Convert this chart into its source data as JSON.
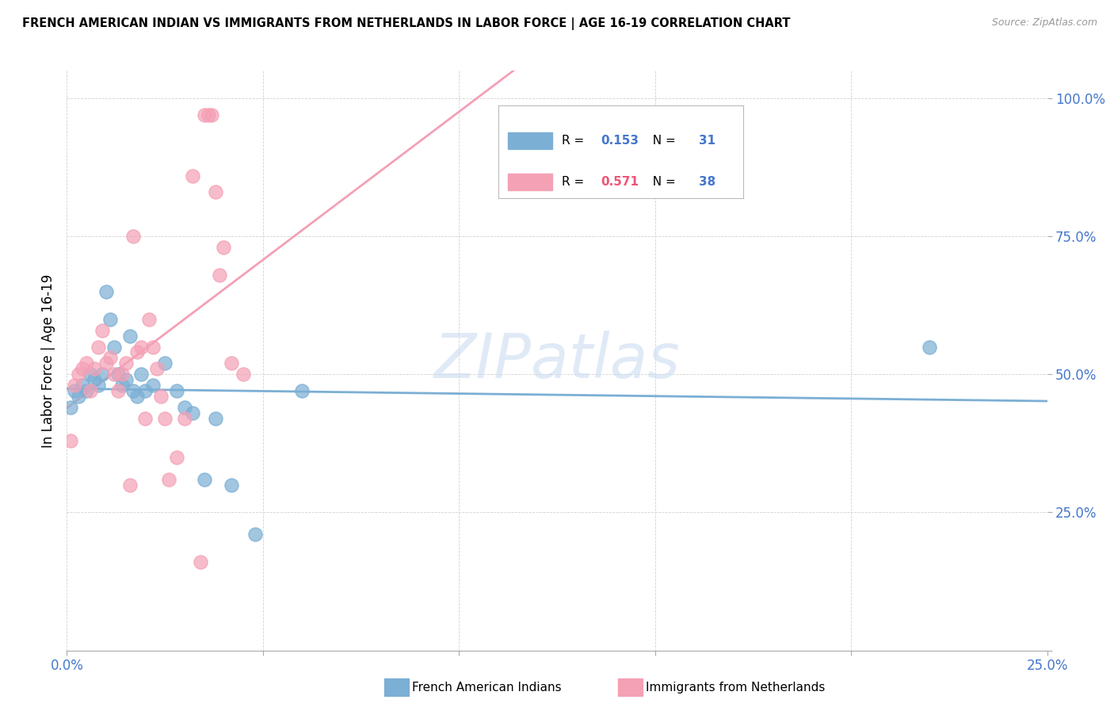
{
  "title": "FRENCH AMERICAN INDIAN VS IMMIGRANTS FROM NETHERLANDS IN LABOR FORCE | AGE 16-19 CORRELATION CHART",
  "source": "Source: ZipAtlas.com",
  "ylabel": "In Labor Force | Age 16-19",
  "legend_label1": "French American Indians",
  "legend_label2": "Immigrants from Netherlands",
  "R1": "0.153",
  "N1": "31",
  "R2": "0.571",
  "N2": "38",
  "watermark": "ZIPatlas",
  "color_blue": "#7bafd4",
  "color_pink": "#f4a0b5",
  "color_blue_text": "#4477cc",
  "color_pink_text": "#ee5577",
  "blue_scatter_x": [
    0.001,
    0.002,
    0.003,
    0.004,
    0.005,
    0.006,
    0.007,
    0.008,
    0.009,
    0.01,
    0.011,
    0.012,
    0.013,
    0.014,
    0.015,
    0.016,
    0.017,
    0.018,
    0.019,
    0.02,
    0.022,
    0.025,
    0.028,
    0.03,
    0.032,
    0.035,
    0.038,
    0.042,
    0.048,
    0.06,
    0.22
  ],
  "blue_scatter_y": [
    0.44,
    0.47,
    0.46,
    0.48,
    0.47,
    0.5,
    0.49,
    0.48,
    0.5,
    0.65,
    0.6,
    0.55,
    0.5,
    0.48,
    0.49,
    0.57,
    0.47,
    0.46,
    0.5,
    0.47,
    0.48,
    0.52,
    0.47,
    0.44,
    0.43,
    0.31,
    0.42,
    0.3,
    0.21,
    0.47,
    0.55
  ],
  "pink_scatter_x": [
    0.001,
    0.002,
    0.003,
    0.004,
    0.005,
    0.006,
    0.007,
    0.008,
    0.009,
    0.01,
    0.011,
    0.012,
    0.013,
    0.014,
    0.015,
    0.016,
    0.017,
    0.018,
    0.019,
    0.02,
    0.021,
    0.022,
    0.023,
    0.024,
    0.025,
    0.026,
    0.028,
    0.03,
    0.032,
    0.034,
    0.035,
    0.036,
    0.037,
    0.038,
    0.039,
    0.04,
    0.042,
    0.045
  ],
  "pink_scatter_y": [
    0.38,
    0.48,
    0.5,
    0.51,
    0.52,
    0.47,
    0.51,
    0.55,
    0.58,
    0.52,
    0.53,
    0.5,
    0.47,
    0.5,
    0.52,
    0.3,
    0.75,
    0.54,
    0.55,
    0.42,
    0.6,
    0.55,
    0.51,
    0.46,
    0.42,
    0.31,
    0.35,
    0.42,
    0.86,
    0.16,
    0.97,
    0.97,
    0.97,
    0.83,
    0.68,
    0.73,
    0.52,
    0.5
  ],
  "xmin": 0.0,
  "xmax": 0.25,
  "ymin": 0.0,
  "ymax": 1.05,
  "xticks": [
    0.0,
    0.05,
    0.1,
    0.15,
    0.2,
    0.25
  ],
  "yticks": [
    0.0,
    0.25,
    0.5,
    0.75,
    1.0
  ]
}
